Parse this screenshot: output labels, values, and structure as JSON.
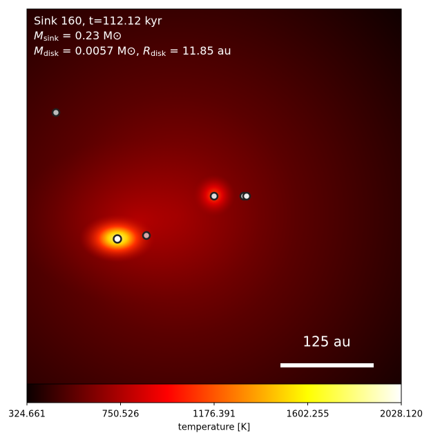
{
  "chart_data": {
    "type": "image",
    "annotations": [
      {
        "text": "Sink 160, t=112.12 kyr"
      },
      {
        "symbol": "M",
        "subscript": "sink",
        "text": " = 0.23 M⊙"
      },
      {
        "symbol": "M",
        "subscript": "disk",
        "text": " = 0.0057 M⊙, ",
        "symbol2": "R",
        "subscript2": "disk",
        "text2": " = 11.85 au"
      }
    ],
    "scale_bar": "125 au",
    "colorbar": {
      "label": "temperature [K]",
      "clim": [
        324.661,
        2028.12
      ],
      "colormap": "hot",
      "ticks": [
        324.661,
        750.526,
        1176.391,
        1602.255,
        {
          "value": 2028.12,
          "label": "2028.120"
        }
      ]
    }
  }
}
